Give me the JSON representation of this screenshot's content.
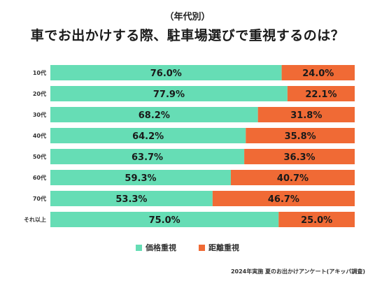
{
  "chart_data": {
    "type": "bar",
    "stacked": true,
    "orientation": "horizontal",
    "subtitle": "（年代別）",
    "title": "車でお出かけする際、駐車場選びで重視するのは？",
    "categories": [
      "10代",
      "20代",
      "30代",
      "40代",
      "50代",
      "60代",
      "70代",
      "それ以上"
    ],
    "series": [
      {
        "name": "価格重視",
        "color": "#66DDB5",
        "values": [
          76.0,
          77.9,
          68.2,
          64.2,
          63.7,
          59.3,
          53.3,
          75.0
        ],
        "labels": [
          "76.0%",
          "77.9%",
          "68.2%",
          "64.2%",
          "63.7%",
          "59.3%",
          "53.3%",
          "75.0%"
        ]
      },
      {
        "name": "距離重視",
        "color": "#F06A35",
        "values": [
          24.0,
          22.1,
          31.8,
          35.8,
          36.3,
          40.7,
          46.7,
          25.0
        ],
        "labels": [
          "24.0%",
          "22.1%",
          "31.8%",
          "35.8%",
          "36.3%",
          "40.7%",
          "46.7%",
          "25.0%"
        ]
      }
    ],
    "xlim": [
      0,
      100
    ],
    "legend_position": "bottom",
    "grid": false
  },
  "footnote": "2024年実施 夏のお出かけアンケート(アキッパ調査)"
}
